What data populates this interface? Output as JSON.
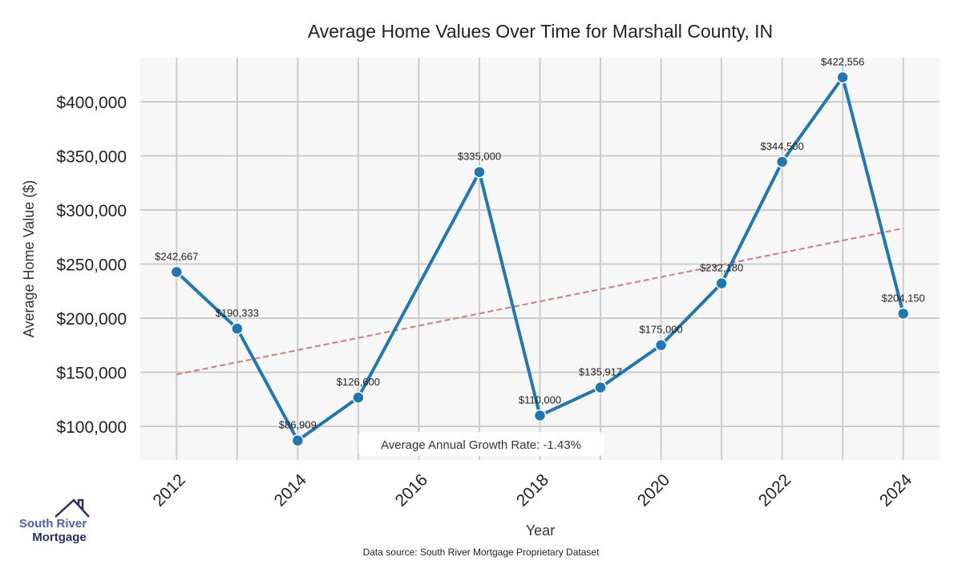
{
  "chart_data": {
    "type": "line",
    "title": "Average Home Values Over Time for Marshall County, IN",
    "xlabel": "Year",
    "ylabel": "Average Home Value ($)",
    "x": [
      2012,
      2013,
      2014,
      2015,
      2016,
      2017,
      2018,
      2019,
      2020,
      2021,
      2022,
      2023,
      2024
    ],
    "series": [
      {
        "name": "Average Home Value",
        "x": [
          2012,
          2013,
          2014,
          2015,
          2017,
          2018,
          2019,
          2020,
          2021,
          2022,
          2023,
          2024
        ],
        "values": [
          242667,
          190333,
          86909,
          126600,
          335000,
          110000,
          135917,
          175000,
          232180,
          344500,
          422556,
          204150
        ],
        "labels": [
          "$242,667",
          "$190,333",
          "$86,909",
          "$126,600",
          "$335,000",
          "$110,000",
          "$135,917",
          "$175,000",
          "$232,180",
          "$344,500",
          "$422,556",
          "$204,150"
        ],
        "color": "#1f77b4"
      }
    ],
    "trendline": {
      "x": [
        2012,
        2024
      ],
      "values": [
        148000,
        283000
      ],
      "color": "#d9777a"
    },
    "xticks": [
      "2012",
      "2014",
      "2016",
      "2018",
      "2020",
      "2022",
      "2024"
    ],
    "xtick_values": [
      2012,
      2014,
      2016,
      2018,
      2020,
      2022,
      2024
    ],
    "yticks": [
      "$100,000",
      "$150,000",
      "$200,000",
      "$250,000",
      "$300,000",
      "$350,000",
      "$400,000"
    ],
    "ytick_values": [
      100000,
      150000,
      200000,
      250000,
      300000,
      350000,
      400000
    ],
    "xlim": [
      2011.4,
      2024.6
    ],
    "ylim": [
      68900,
      440700
    ],
    "grid": true,
    "annotation": "Average Annual Growth Rate: -1.43%"
  },
  "footer": {
    "source": "Data source: South River Mortgage Proprietary Dataset"
  },
  "logo": {
    "line1": "South River",
    "line2": "Mortgage"
  }
}
